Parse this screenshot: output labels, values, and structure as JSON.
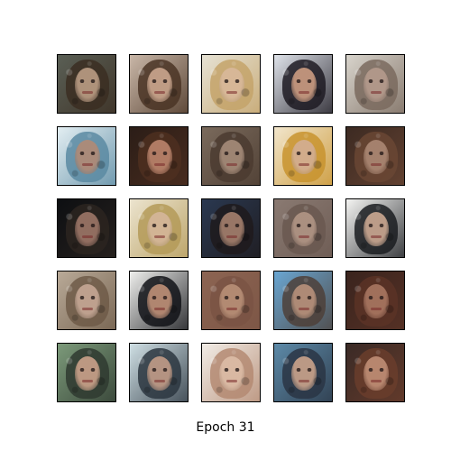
{
  "figure": {
    "caption": "Epoch 31",
    "grid": {
      "rows": 5,
      "columns": 5
    },
    "tiles": [
      {
        "bg": "#5a5f55",
        "hair": "#3b2e22",
        "face": "#b89a82"
      },
      {
        "bg": "#c9b7a8",
        "hair": "#4a3424",
        "face": "#c8a48c"
      },
      {
        "bg": "#e6e2d4",
        "hair": "#c4a36a",
        "face": "#d8b89a"
      },
      {
        "bg": "#dfe3ea",
        "hair": "#1d1a22",
        "face": "#c99a80"
      },
      {
        "bg": "#d8d4cc",
        "hair": "#7a6a5e",
        "face": "#b49a8c"
      },
      {
        "bg": "#e3eef2",
        "hair": "#5b8aa2",
        "face": "#b08a76"
      },
      {
        "bg": "#2b1d17",
        "hair": "#4e2f20",
        "face": "#b9826a"
      },
      {
        "bg": "#7a6a5c",
        "hair": "#4b3b30",
        "face": "#a48a78"
      },
      {
        "bg": "#f2e6cc",
        "hair": "#c8932e",
        "face": "#d2ae92"
      },
      {
        "bg": "#3c2a22",
        "hair": "#6a4634",
        "face": "#aa8672"
      },
      {
        "bg": "#0d0f12",
        "hair": "#2b2420",
        "face": "#9a7466"
      },
      {
        "bg": "#ece4cf",
        "hair": "#b49a58",
        "face": "#d4b699"
      },
      {
        "bg": "#2a3850",
        "hair": "#1e1a1c",
        "face": "#a27e6c"
      },
      {
        "bg": "#8a7a72",
        "hair": "#6a5850",
        "face": "#b09484"
      },
      {
        "bg": "#f4f4f2",
        "hair": "#1a1c20",
        "face": "#c8a690"
      },
      {
        "bg": "#b9aa98",
        "hair": "#6e5b48",
        "face": "#c4a694"
      },
      {
        "bg": "#efefed",
        "hair": "#111216",
        "face": "#bc8e76"
      },
      {
        "bg": "#8c6452",
        "hair": "#7a5444",
        "face": "#b78e76"
      },
      {
        "bg": "#6aa6d2",
        "hair": "#4d4038",
        "face": "#b6907a"
      },
      {
        "bg": "#3a241e",
        "hair": "#5a3326",
        "face": "#a77560"
      },
      {
        "bg": "#7c9a7a",
        "hair": "#2f3a30",
        "face": "#c8a088"
      },
      {
        "bg": "#cfdfe4",
        "hair": "#2c3640",
        "face": "#bf9a86"
      },
      {
        "bg": "#f1ece6",
        "hair": "#b48a72",
        "face": "#dcbca6"
      },
      {
        "bg": "#5d8aa8",
        "hair": "#2a3544",
        "face": "#c7a18a"
      },
      {
        "bg": "#3a2a26",
        "hair": "#6a3d2c",
        "face": "#be8c74"
      }
    ]
  }
}
